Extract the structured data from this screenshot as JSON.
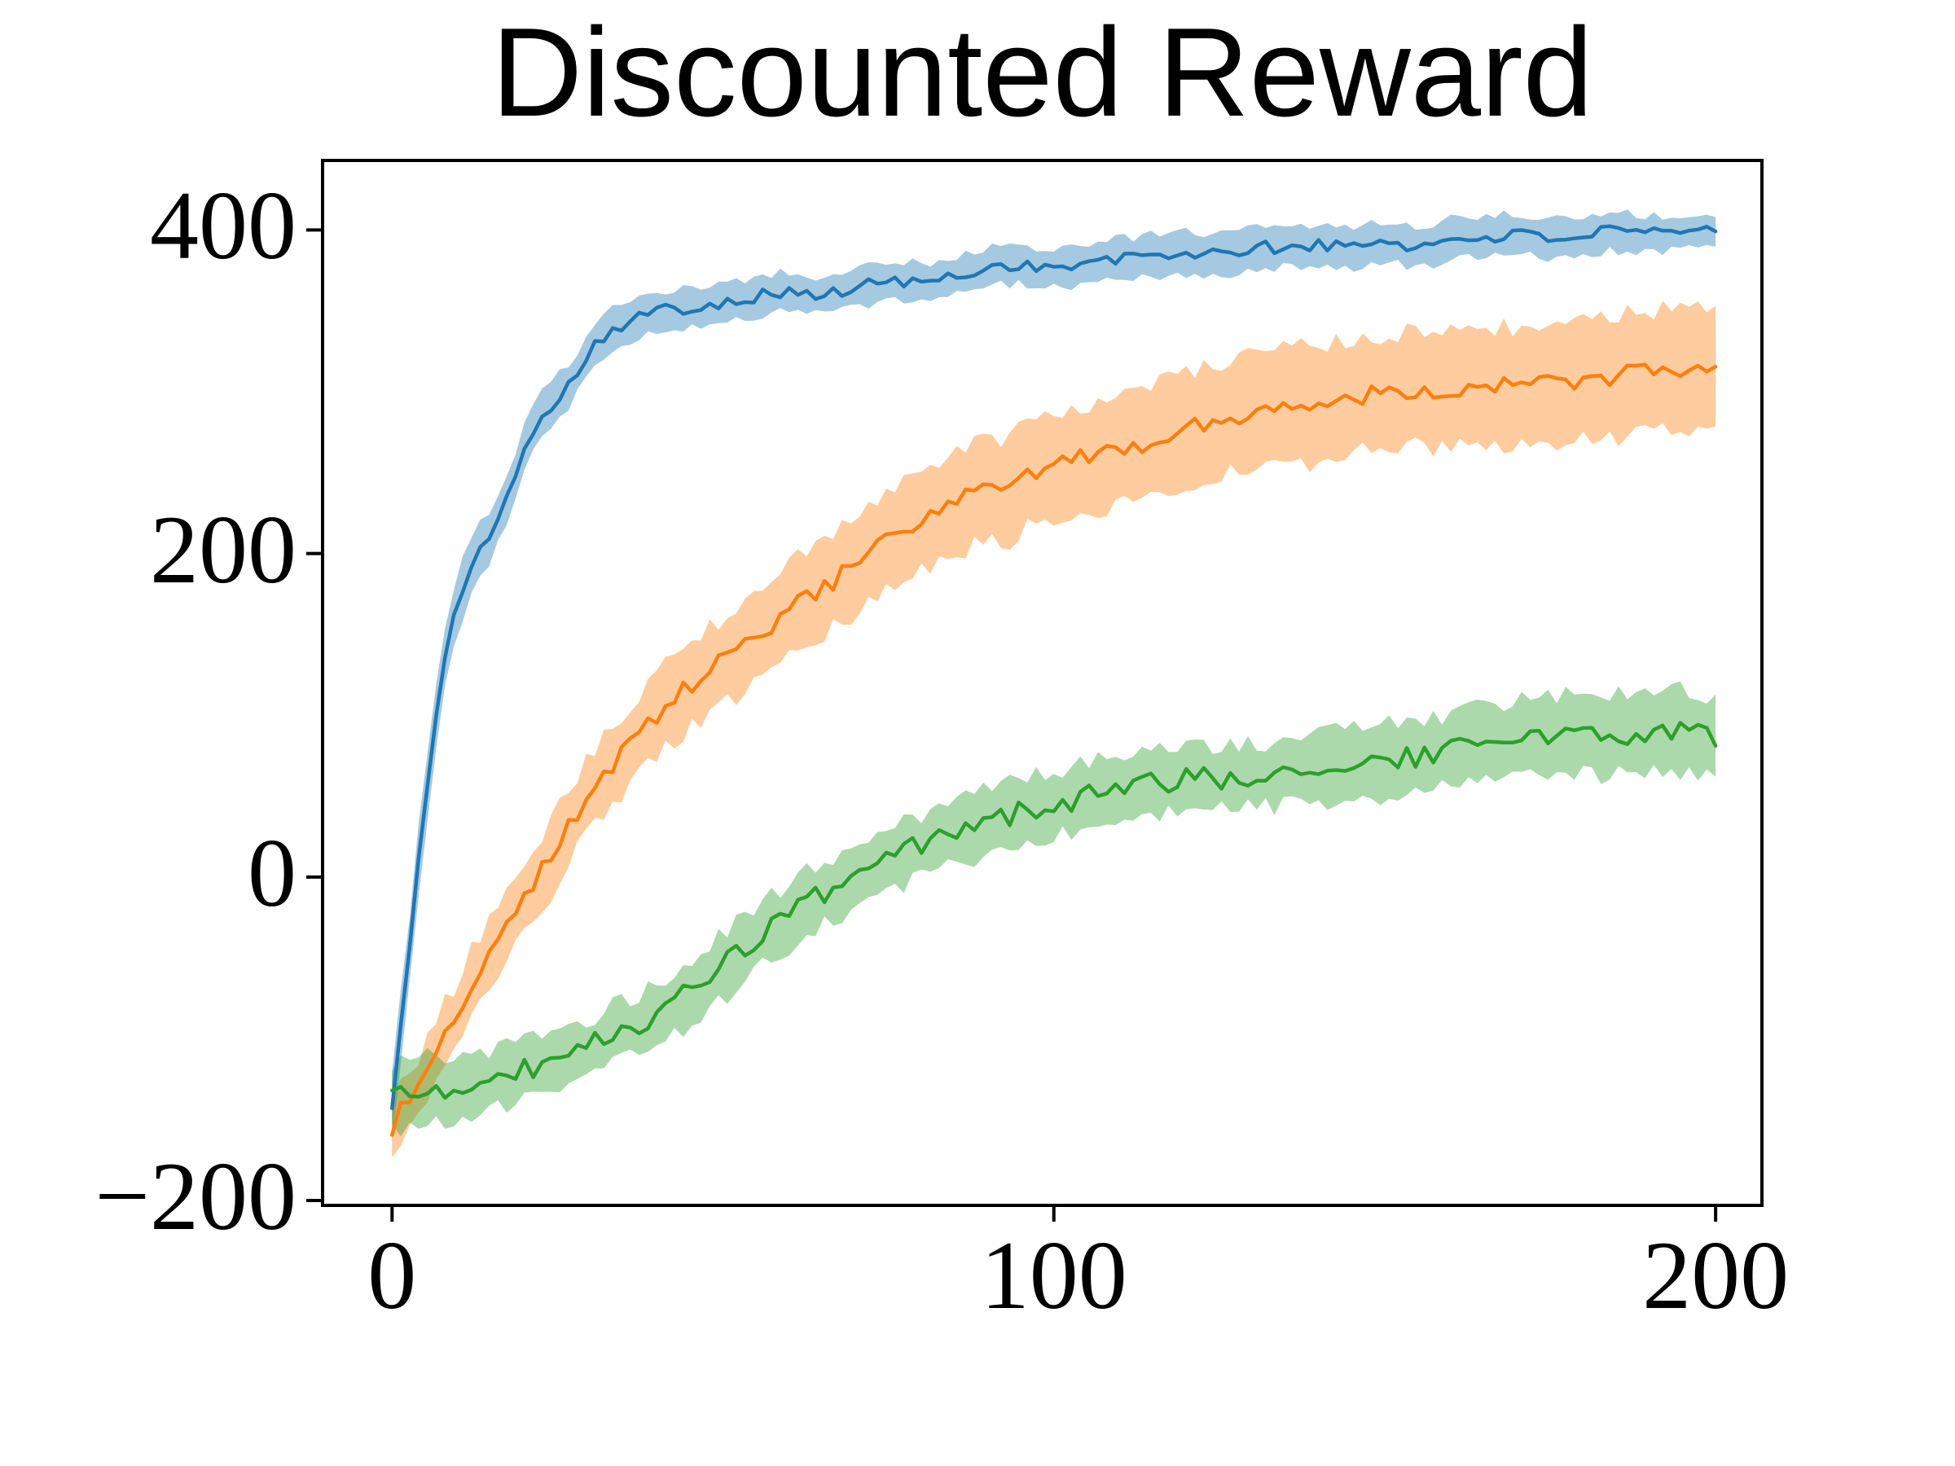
{
  "chart_data": {
    "type": "line",
    "title": "Discounted Reward",
    "xlabel": "",
    "ylabel": "",
    "xlim": [
      -10.5,
      207
    ],
    "ylim": [
      -203,
      443
    ],
    "x_ticks": [
      0,
      100,
      200
    ],
    "x_tick_labels": [
      "0",
      "100",
      "200"
    ],
    "y_ticks": [
      -200,
      0,
      200,
      400
    ],
    "y_tick_labels": [
      "−200",
      "0",
      "200",
      "400"
    ],
    "grid": false,
    "legend_position": "none",
    "background_color": "#ffffff",
    "spine_color": "#000000",
    "series": [
      {
        "name": "series-blue",
        "color": "#1f77b4",
        "band_alpha": 0.4,
        "line_noise": 4,
        "band_noise": 3,
        "anchors": [
          [
            0,
            -140
          ],
          [
            2,
            -70
          ],
          [
            4,
            10
          ],
          [
            6,
            80
          ],
          [
            8,
            135
          ],
          [
            10,
            170
          ],
          [
            12,
            195
          ],
          [
            14,
            210
          ],
          [
            15,
            205
          ],
          [
            16,
            222
          ],
          [
            18,
            238
          ],
          [
            20,
            268
          ],
          [
            22,
            282
          ],
          [
            24,
            292
          ],
          [
            26,
            300
          ],
          [
            28,
            312
          ],
          [
            30,
            328
          ],
          [
            33,
            338
          ],
          [
            36,
            344
          ],
          [
            40,
            350
          ],
          [
            45,
            352
          ],
          [
            50,
            356
          ],
          [
            55,
            359
          ],
          [
            60,
            362
          ],
          [
            65,
            359
          ],
          [
            70,
            364
          ],
          [
            75,
            369
          ],
          [
            80,
            367
          ],
          [
            85,
            371
          ],
          [
            90,
            377
          ],
          [
            95,
            379
          ],
          [
            100,
            376
          ],
          [
            105,
            379
          ],
          [
            110,
            382
          ],
          [
            115,
            384
          ],
          [
            120,
            386
          ],
          [
            125,
            384
          ],
          [
            130,
            389
          ],
          [
            135,
            389
          ],
          [
            140,
            391
          ],
          [
            145,
            389
          ],
          [
            150,
            394
          ],
          [
            155,
            389
          ],
          [
            160,
            394
          ],
          [
            165,
            396
          ],
          [
            170,
            397
          ],
          [
            175,
            395
          ],
          [
            180,
            397
          ],
          [
            185,
            399
          ],
          [
            190,
            397
          ],
          [
            195,
            399
          ],
          [
            200,
            399
          ]
        ],
        "band": [
          [
            0,
            22
          ],
          [
            5,
            20
          ],
          [
            10,
            18
          ],
          [
            15,
            16
          ],
          [
            20,
            15
          ],
          [
            30,
            13
          ],
          [
            40,
            12
          ],
          [
            60,
            12
          ],
          [
            80,
            12
          ],
          [
            100,
            12
          ],
          [
            120,
            13
          ],
          [
            140,
            12
          ],
          [
            160,
            13
          ],
          [
            180,
            12
          ],
          [
            200,
            11
          ]
        ]
      },
      {
        "name": "series-orange",
        "color": "#ff7f0e",
        "band_alpha": 0.4,
        "line_noise": 6,
        "band_noise": 6,
        "anchors": [
          [
            0,
            -155
          ],
          [
            2,
            -140
          ],
          [
            4,
            -128
          ],
          [
            6,
            -112
          ],
          [
            8,
            -95
          ],
          [
            10,
            -85
          ],
          [
            12,
            -65
          ],
          [
            14,
            -52
          ],
          [
            16,
            -40
          ],
          [
            18,
            -25
          ],
          [
            20,
            -10
          ],
          [
            22,
            0
          ],
          [
            24,
            12
          ],
          [
            26,
            28
          ],
          [
            28,
            40
          ],
          [
            30,
            52
          ],
          [
            33,
            68
          ],
          [
            36,
            82
          ],
          [
            39,
            95
          ],
          [
            42,
            108
          ],
          [
            45,
            118
          ],
          [
            48,
            128
          ],
          [
            51,
            136
          ],
          [
            54,
            146
          ],
          [
            57,
            155
          ],
          [
            60,
            165
          ],
          [
            63,
            173
          ],
          [
            66,
            181
          ],
          [
            69,
            190
          ],
          [
            72,
            200
          ],
          [
            75,
            207
          ],
          [
            78,
            214
          ],
          [
            81,
            222
          ],
          [
            84,
            228
          ],
          [
            87,
            236
          ],
          [
            90,
            240
          ],
          [
            93,
            236
          ],
          [
            96,
            250
          ],
          [
            100,
            254
          ],
          [
            104,
            258
          ],
          [
            108,
            261
          ],
          [
            112,
            266
          ],
          [
            116,
            272
          ],
          [
            120,
            277
          ],
          [
            124,
            281
          ],
          [
            128,
            286
          ],
          [
            132,
            289
          ],
          [
            136,
            291
          ],
          [
            140,
            292
          ],
          [
            144,
            296
          ],
          [
            148,
            299
          ],
          [
            152,
            301
          ],
          [
            156,
            302
          ],
          [
            160,
            300
          ],
          [
            164,
            304
          ],
          [
            168,
            303
          ],
          [
            172,
            304
          ],
          [
            176,
            306
          ],
          [
            180,
            308
          ],
          [
            184,
            309
          ],
          [
            188,
            311
          ],
          [
            192,
            313
          ],
          [
            196,
            315
          ],
          [
            200,
            311
          ]
        ],
        "band": [
          [
            0,
            15
          ],
          [
            5,
            18
          ],
          [
            10,
            20
          ],
          [
            15,
            21
          ],
          [
            20,
            22
          ],
          [
            30,
            24
          ],
          [
            40,
            26
          ],
          [
            50,
            27
          ],
          [
            60,
            28
          ],
          [
            70,
            30
          ],
          [
            80,
            31
          ],
          [
            90,
            33
          ],
          [
            100,
            33
          ],
          [
            110,
            34
          ],
          [
            120,
            34
          ],
          [
            130,
            35
          ],
          [
            140,
            36
          ],
          [
            150,
            35
          ],
          [
            160,
            36
          ],
          [
            170,
            37
          ],
          [
            180,
            38
          ],
          [
            190,
            38
          ],
          [
            200,
            36
          ]
        ]
      },
      {
        "name": "series-green",
        "color": "#2ca02c",
        "band_alpha": 0.4,
        "line_noise": 7,
        "band_noise": 6,
        "anchors": [
          [
            0,
            -138
          ],
          [
            2,
            -132
          ],
          [
            4,
            -136
          ],
          [
            6,
            -130
          ],
          [
            8,
            -134
          ],
          [
            10,
            -128
          ],
          [
            12,
            -131
          ],
          [
            14,
            -127
          ],
          [
            16,
            -124
          ],
          [
            18,
            -122
          ],
          [
            20,
            -119
          ],
          [
            22,
            -116
          ],
          [
            24,
            -113
          ],
          [
            26,
            -110
          ],
          [
            28,
            -107
          ],
          [
            30,
            -104
          ],
          [
            32,
            -100
          ],
          [
            34,
            -97
          ],
          [
            36,
            -93
          ],
          [
            38,
            -89
          ],
          [
            40,
            -84
          ],
          [
            43,
            -77
          ],
          [
            46,
            -68
          ],
          [
            49,
            -58
          ],
          [
            52,
            -48
          ],
          [
            55,
            -38
          ],
          [
            58,
            -29
          ],
          [
            61,
            -21
          ],
          [
            64,
            -13
          ],
          [
            67,
            -6
          ],
          [
            70,
            0
          ],
          [
            73,
            6
          ],
          [
            76,
            12
          ],
          [
            79,
            18
          ],
          [
            82,
            23
          ],
          [
            85,
            27
          ],
          [
            88,
            31
          ],
          [
            91,
            35
          ],
          [
            94,
            39
          ],
          [
            97,
            42
          ],
          [
            100,
            45
          ],
          [
            104,
            49
          ],
          [
            108,
            53
          ],
          [
            112,
            56
          ],
          [
            116,
            58
          ],
          [
            120,
            60
          ],
          [
            124,
            61
          ],
          [
            128,
            62
          ],
          [
            132,
            63
          ],
          [
            136,
            65
          ],
          [
            140,
            67
          ],
          [
            144,
            69
          ],
          [
            148,
            71
          ],
          [
            152,
            73
          ],
          [
            156,
            75
          ],
          [
            160,
            79
          ],
          [
            164,
            81
          ],
          [
            168,
            84
          ],
          [
            172,
            86
          ],
          [
            176,
            88
          ],
          [
            180,
            88
          ],
          [
            184,
            89
          ],
          [
            188,
            88
          ],
          [
            192,
            90
          ],
          [
            196,
            90
          ],
          [
            200,
            88
          ]
        ],
        "band": [
          [
            0,
            20
          ],
          [
            5,
            22
          ],
          [
            10,
            20
          ],
          [
            20,
            18
          ],
          [
            30,
            17
          ],
          [
            40,
            19
          ],
          [
            50,
            21
          ],
          [
            60,
            20
          ],
          [
            70,
            19
          ],
          [
            80,
            19
          ],
          [
            90,
            20
          ],
          [
            100,
            20
          ],
          [
            110,
            21
          ],
          [
            120,
            20
          ],
          [
            130,
            20
          ],
          [
            140,
            21
          ],
          [
            150,
            22
          ],
          [
            160,
            22
          ],
          [
            170,
            24
          ],
          [
            180,
            25
          ],
          [
            190,
            26
          ],
          [
            200,
            24
          ]
        ]
      }
    ]
  }
}
